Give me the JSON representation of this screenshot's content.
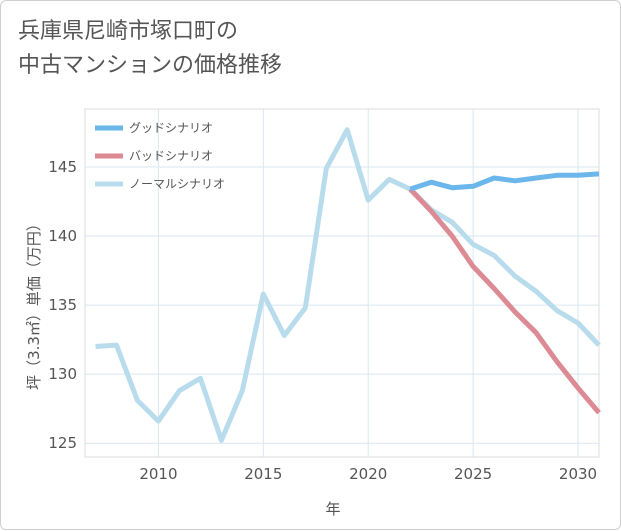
{
  "chart_data": {
    "type": "line",
    "title": "兵庫県尼崎市塚口町の\n中古マンションの価格推移",
    "xlabel": "年",
    "ylabel": "坪（3.3㎡）単価（万円）",
    "xlim": [
      2006.5,
      2031
    ],
    "ylim": [
      124,
      149.2
    ],
    "xticks": [
      "2010",
      "2015",
      "2020",
      "2025",
      "2030"
    ],
    "yticks": [
      "125",
      "130",
      "135",
      "140",
      "145"
    ],
    "grid": true,
    "legend_position": "top-left",
    "series": [
      {
        "name": "グッドシナリオ",
        "color": "#6bb6ea",
        "x": [
          2022,
          2023,
          2024,
          2025,
          2026,
          2027,
          2028,
          2029,
          2030,
          2031
        ],
        "y": [
          143.4,
          143.9,
          143.5,
          143.6,
          144.2,
          144.0,
          144.2,
          144.4,
          144.4,
          144.5
        ]
      },
      {
        "name": "バッドシナリオ",
        "color": "#dc8a93",
        "x": [
          2022,
          2023,
          2024,
          2025,
          2026,
          2027,
          2028,
          2029,
          2030,
          2031
        ],
        "y": [
          143.4,
          141.8,
          140.0,
          137.8,
          136.2,
          134.5,
          133.0,
          130.9,
          129.0,
          127.2
        ]
      },
      {
        "name": "ノーマルシナリオ",
        "color": "#b9dced",
        "x": [
          2007,
          2008,
          2009,
          2010,
          2011,
          2012,
          2013,
          2014,
          2015,
          2016,
          2017,
          2018,
          2019,
          2020,
          2021,
          2022,
          2023,
          2024,
          2025,
          2026,
          2027,
          2028,
          2029,
          2030,
          2031
        ],
        "y": [
          132.0,
          132.1,
          128.1,
          126.6,
          128.8,
          129.7,
          125.2,
          128.8,
          135.8,
          132.8,
          134.8,
          144.9,
          147.7,
          142.6,
          144.1,
          143.4,
          141.9,
          141.0,
          139.4,
          138.6,
          137.1,
          136.0,
          134.6,
          133.7,
          132.1
        ]
      }
    ]
  }
}
